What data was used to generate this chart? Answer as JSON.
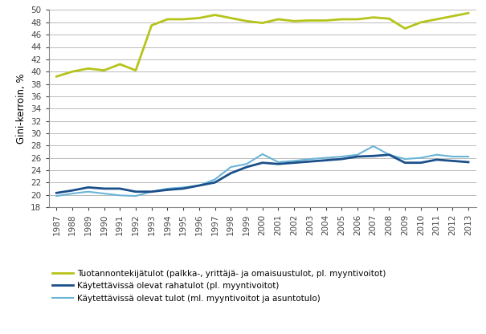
{
  "years": [
    1987,
    1988,
    1989,
    1990,
    1991,
    1992,
    1993,
    1994,
    1995,
    1996,
    1997,
    1998,
    1999,
    2000,
    2001,
    2002,
    2003,
    2004,
    2005,
    2006,
    2007,
    2008,
    2009,
    2010,
    2011,
    2012,
    2013
  ],
  "tuotannontekijatulot": [
    39.2,
    40.0,
    40.5,
    40.2,
    41.2,
    40.2,
    47.5,
    48.5,
    48.5,
    48.7,
    49.2,
    48.7,
    48.2,
    47.9,
    48.5,
    48.2,
    48.3,
    48.3,
    48.5,
    48.5,
    48.8,
    48.6,
    47.0,
    48.0,
    48.5,
    49.0,
    49.5
  ],
  "kaytettavissa_rahatulot": [
    20.3,
    20.7,
    21.2,
    21.0,
    21.0,
    20.5,
    20.5,
    20.8,
    21.0,
    21.5,
    22.0,
    23.5,
    24.5,
    25.2,
    25.0,
    25.2,
    25.4,
    25.6,
    25.8,
    26.2,
    26.3,
    26.5,
    25.2,
    25.2,
    25.7,
    25.5,
    25.3
  ],
  "kaytettavissa_tulot": [
    19.8,
    20.2,
    20.5,
    20.2,
    19.9,
    19.8,
    20.5,
    21.0,
    21.2,
    21.5,
    22.5,
    24.5,
    25.0,
    26.6,
    25.3,
    25.5,
    25.8,
    26.0,
    26.2,
    26.5,
    27.9,
    26.5,
    25.8,
    26.0,
    26.5,
    26.2,
    26.2
  ],
  "color_tuotanto": "#b5c41a",
  "color_rahatulot": "#1a4f8a",
  "color_tulot": "#6ab4d8",
  "ylabel": "Gini-kerroin, %",
  "ylim": [
    18,
    50
  ],
  "yticks": [
    18,
    20,
    22,
    24,
    26,
    28,
    30,
    32,
    34,
    36,
    38,
    40,
    42,
    44,
    46,
    48,
    50
  ],
  "legend_tuotanto": "Tuotannontekijätulot (palkka-, yrittäjä- ja omaisuustulot, pl. myyntivoitot)",
  "legend_rahatulot": "Käytettävissä olevat rahatulot (pl. myyntivoitot)",
  "legend_tulot": "Käytettävissä olevat tulot (ml. myyntivoitot ja asuntotulo)",
  "background_color": "#ffffff",
  "grid_color": "#b0b0b0"
}
